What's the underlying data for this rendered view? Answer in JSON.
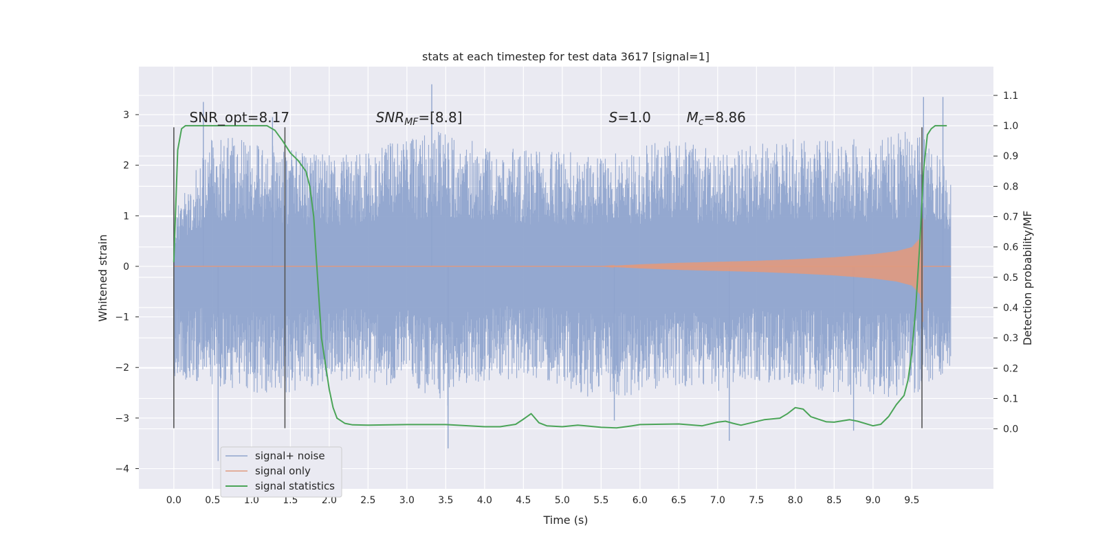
{
  "chart_data": {
    "type": "line",
    "title": "stats at each timestep for test data 3617 [signal=1]",
    "xlabel": "Time (s)",
    "ylabel": "Whitened strain",
    "y2label": "Detection probability/MF",
    "xlim": [
      -0.45,
      10.55
    ],
    "ylim": [
      -4.4,
      3.95
    ],
    "y2lim": [
      -0.198,
      1.195
    ],
    "x_ticks": [
      0.0,
      0.5,
      1.0,
      1.5,
      2.0,
      2.5,
      3.0,
      3.5,
      4.0,
      4.5,
      5.0,
      5.5,
      6.0,
      6.5,
      7.0,
      7.5,
      8.0,
      8.5,
      9.0,
      9.5
    ],
    "x_tick_labels": [
      "0.0",
      "0.5",
      "1.0",
      "1.5",
      "2.0",
      "2.5",
      "3.0",
      "3.5",
      "4.0",
      "4.5",
      "5.0",
      "5.5",
      "6.0",
      "6.5",
      "7.0",
      "7.5",
      "8.0",
      "8.5",
      "9.0",
      "9.5"
    ],
    "y_ticks": [
      3,
      2,
      1,
      0,
      -1,
      -2,
      -3,
      -4
    ],
    "y_tick_labels": [
      "3",
      "2",
      "1",
      "0",
      "−1",
      "−2",
      "−3",
      "−4"
    ],
    "y2_ticks": [
      1.1,
      1.0,
      0.9,
      0.8,
      0.7,
      0.6,
      0.5,
      0.4,
      0.3,
      0.2,
      0.1,
      0.0
    ],
    "y2_tick_labels": [
      "1.1",
      "1.0",
      "0.9",
      "0.8",
      "0.7",
      "0.6",
      "0.5",
      "0.4",
      "0.3",
      "0.2",
      "0.1",
      "0.0"
    ],
    "grid": true,
    "legend_position": "lower-left",
    "series": [
      {
        "name": "signal+ noise",
        "color": "#8fa4cd",
        "axis": "left",
        "x_range": [
          0.0,
          10.0
        ],
        "envelope": {
          "x": [
            0.0,
            0.5,
            1.0,
            1.5,
            2.0,
            2.5,
            3.0,
            3.5,
            4.0,
            4.5,
            5.0,
            5.5,
            6.0,
            6.5,
            7.0,
            7.5,
            8.0,
            8.5,
            9.0,
            9.5,
            10.0
          ],
          "upper": [
            1.2,
            2.6,
            2.5,
            2.3,
            2.2,
            2.3,
            2.6,
            2.7,
            2.4,
            2.3,
            2.3,
            2.2,
            2.4,
            2.5,
            2.3,
            2.4,
            2.6,
            2.6,
            2.5,
            2.8,
            1.9
          ],
          "lower": [
            -2.2,
            -2.4,
            -2.5,
            -2.5,
            -2.3,
            -2.3,
            -2.4,
            -2.8,
            -2.3,
            -2.2,
            -2.4,
            -2.7,
            -2.5,
            -2.4,
            -2.6,
            -2.3,
            -2.4,
            -2.5,
            -2.6,
            -2.6,
            -2.0
          ]
        },
        "peak_spikes": [
          {
            "x": 0.38,
            "y": 3.25
          },
          {
            "x": 0.57,
            "y": -3.85
          },
          {
            "x": 1.27,
            "y": 2.95
          },
          {
            "x": 3.32,
            "y": 3.6
          },
          {
            "x": 3.53,
            "y": -3.6
          },
          {
            "x": 5.67,
            "y": -3.05
          },
          {
            "x": 7.15,
            "y": -3.45
          },
          {
            "x": 8.75,
            "y": -3.25
          },
          {
            "x": 9.65,
            "y": 3.35
          },
          {
            "x": 9.9,
            "y": 3.35
          }
        ]
      },
      {
        "name": "signal only",
        "color": "#e0997e",
        "axis": "left",
        "chirp_start": 5.5,
        "chirp_end": 9.64,
        "amplitude": {
          "x": [
            5.5,
            6.0,
            6.5,
            7.0,
            7.5,
            8.0,
            8.5,
            9.0,
            9.3,
            9.5,
            9.6,
            9.64
          ],
          "value": [
            0.0,
            0.04,
            0.07,
            0.09,
            0.11,
            0.14,
            0.18,
            0.24,
            0.3,
            0.38,
            0.55,
            0.95
          ]
        },
        "min_at_end": -1.1
      },
      {
        "name": "signal statistics",
        "color": "#4aa457",
        "axis": "right",
        "x": [
          0.0,
          0.05,
          0.1,
          0.15,
          0.2,
          0.3,
          0.5,
          0.7,
          0.9,
          1.0,
          1.1,
          1.2,
          1.3,
          1.4,
          1.5,
          1.6,
          1.7,
          1.75,
          1.8,
          1.85,
          1.9,
          2.0,
          2.05,
          2.1,
          2.2,
          2.3,
          2.5,
          3.0,
          3.5,
          4.0,
          4.2,
          4.4,
          4.5,
          4.6,
          4.7,
          4.8,
          5.0,
          5.2,
          5.3,
          5.5,
          5.7,
          5.9,
          6.0,
          6.2,
          6.5,
          6.8,
          7.0,
          7.1,
          7.2,
          7.3,
          7.6,
          7.8,
          7.9,
          8.0,
          8.1,
          8.2,
          8.4,
          8.5,
          8.7,
          8.8,
          9.0,
          9.1,
          9.2,
          9.3,
          9.4,
          9.45,
          9.5,
          9.55,
          9.6,
          9.65,
          9.7,
          9.75,
          9.8,
          9.9,
          9.95
        ],
        "y": [
          0.55,
          0.92,
          0.99,
          1.0,
          1.0,
          1.0,
          1.0,
          1.0,
          1.0,
          1.0,
          1.0,
          1.0,
          0.985,
          0.95,
          0.91,
          0.885,
          0.85,
          0.8,
          0.7,
          0.5,
          0.3,
          0.13,
          0.07,
          0.035,
          0.018,
          0.013,
          0.012,
          0.014,
          0.014,
          0.007,
          0.007,
          0.015,
          0.032,
          0.05,
          0.02,
          0.01,
          0.007,
          0.012,
          0.01,
          0.005,
          0.003,
          0.01,
          0.014,
          0.015,
          0.016,
          0.01,
          0.022,
          0.025,
          0.018,
          0.012,
          0.03,
          0.035,
          0.05,
          0.07,
          0.065,
          0.04,
          0.023,
          0.022,
          0.03,
          0.025,
          0.01,
          0.015,
          0.04,
          0.08,
          0.11,
          0.16,
          0.25,
          0.4,
          0.6,
          0.85,
          0.97,
          0.99,
          1.0,
          1.0,
          1.0
        ]
      }
    ],
    "vertical_lines": [
      {
        "x": 0.0,
        "y_top": 2.75,
        "y_bottom": -3.2
      },
      {
        "x": 1.43,
        "y_top": 2.75,
        "y_bottom": -3.2
      },
      {
        "x": 9.63,
        "y_top": 2.75,
        "y_bottom": -3.2
      }
    ],
    "annotations": [
      {
        "id": "snr-opt",
        "text": "SNR_opt=8.17",
        "x": 0.2,
        "y": 2.85
      },
      {
        "id": "snr-mf",
        "parts": [
          "SNR",
          "MF",
          "=[8.8]"
        ],
        "x": 2.6,
        "y": 2.85
      },
      {
        "id": "s-stat",
        "parts": [
          "S",
          "=1.0"
        ],
        "x": 5.6,
        "y": 2.85
      },
      {
        "id": "mc",
        "parts": [
          "M",
          "c",
          "=8.86"
        ],
        "x": 6.6,
        "y": 2.85
      }
    ]
  }
}
